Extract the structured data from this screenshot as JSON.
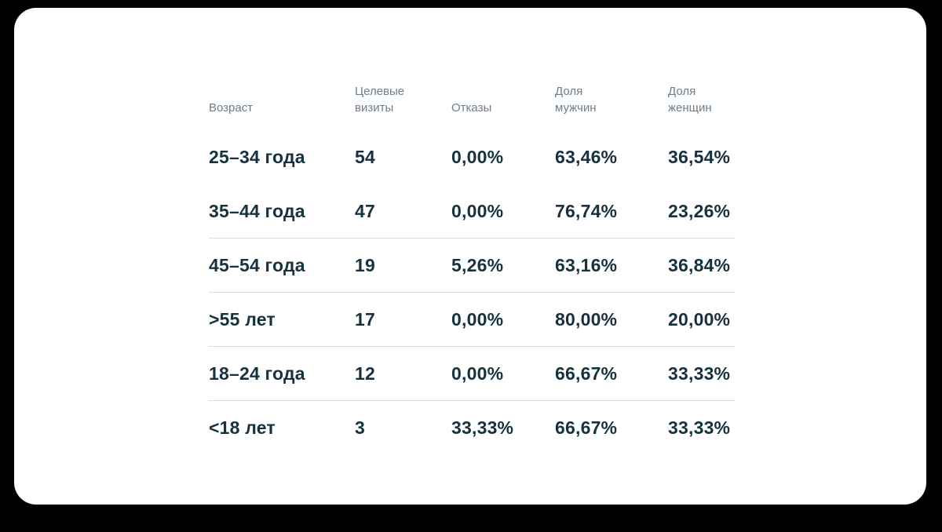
{
  "colors": {
    "page_background": "#000000",
    "card_background": "#ffffff",
    "header_text": "#6e7e8c",
    "data_text": "#16323f",
    "divider": "#dcdcdc"
  },
  "chart_data": {
    "type": "table",
    "title": "",
    "columns": [
      "Возраст",
      "Целевые визиты",
      "Отказы",
      "Доля мужчин",
      "Доля женщин"
    ],
    "header_display": [
      "Возраст",
      "Целевые\nвизиты",
      "Отказы",
      "Доля\nмужчин",
      "Доля\nженщин"
    ],
    "rows": [
      {
        "age": "25–34 года",
        "target_visits": "54",
        "bounce_rate": "0,00%",
        "male_share": "63,46%",
        "female_share": "36,54%"
      },
      {
        "age": "35–44 года",
        "target_visits": "47",
        "bounce_rate": "0,00%",
        "male_share": "76,74%",
        "female_share": "23,26%"
      },
      {
        "age": "45–54 года",
        "target_visits": "19",
        "bounce_rate": "5,26%",
        "male_share": "63,16%",
        "female_share": "36,84%"
      },
      {
        "age": ">55 лет",
        "target_visits": "17",
        "bounce_rate": "0,00%",
        "male_share": "80,00%",
        "female_share": "20,00%"
      },
      {
        "age": "18–24 года",
        "target_visits": "12",
        "bounce_rate": "0,00%",
        "male_share": "66,67%",
        "female_share": "33,33%"
      },
      {
        "age": "<18 лет",
        "target_visits": "3",
        "bounce_rate": "33,33%",
        "male_share": "66,67%",
        "female_share": "33,33%"
      }
    ]
  }
}
